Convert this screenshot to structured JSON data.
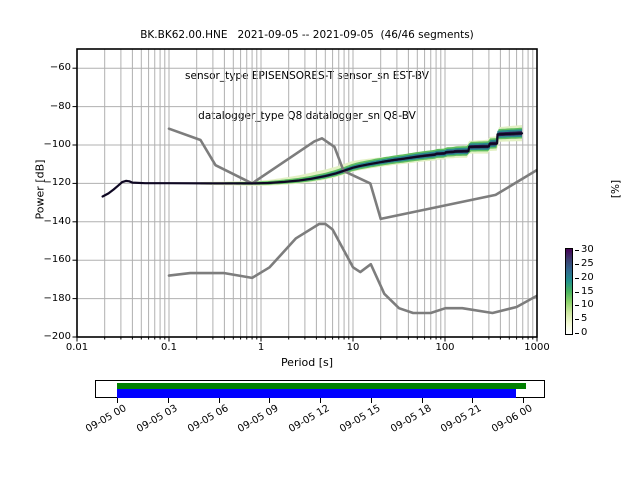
{
  "title": {
    "line1": "BK.BK62.00.HNE   2021-09-05 -- 2021-09-05  (46/46 segments)",
    "line2": "sensor_type EPISENSORES-T sensor_sn EST-BV",
    "line3": "datalogger_type Q8 datalogger_sn Q8-BV"
  },
  "chart_data": {
    "type": "line",
    "subtype": "ppsd-probabilistic-power-spectral-density",
    "xlabel": "Period [s]",
    "ylabel": "Power [dB]",
    "xscale": "log",
    "xlim": [
      0.01,
      1000
    ],
    "ylim": [
      -200,
      -50
    ],
    "grid": true,
    "x_ticks": {
      "values": [
        0.01,
        0.1,
        1,
        10,
        100,
        1000
      ],
      "labels": [
        "0.01",
        "0.1",
        "1",
        "10",
        "100",
        "1000"
      ]
    },
    "y_ticks": {
      "values": [
        -60,
        -80,
        -100,
        -120,
        -140,
        -160,
        -180,
        -200
      ],
      "labels": [
        "−60",
        "−80",
        "−100",
        "−120",
        "−140",
        "−160",
        "−180",
        "−200"
      ]
    },
    "colors": {
      "grid": "#b0b0b0",
      "frame": "#000000",
      "noise_model": "#7d7d7d",
      "psd_mode_line": "#0f0823",
      "band_pale": "#e2f0c3",
      "band_green": "#5fbe5f",
      "band_teal": "#28898c",
      "band_dark": "#341b59",
      "coverage_green": "#007f00",
      "coverage_blue": "#0000ff"
    },
    "series": [
      {
        "name": "NHNM-high-noise-model",
        "color": "#7d7d7d",
        "points": [
          [
            0.1,
            -91.5
          ],
          [
            0.22,
            -97.4
          ],
          [
            0.32,
            -110.5
          ],
          [
            0.8,
            -120.0
          ],
          [
            3.8,
            -98.1
          ],
          [
            4.6,
            -96.5
          ],
          [
            6.3,
            -101.0
          ],
          [
            7.9,
            -113.5
          ],
          [
            15.4,
            -120.0
          ],
          [
            20,
            -138.5
          ],
          [
            354.8,
            -126.0
          ],
          [
            1000,
            -113.0
          ]
        ]
      },
      {
        "name": "NLNM-low-noise-model",
        "color": "#7d7d7d",
        "points": [
          [
            0.1,
            -168.0
          ],
          [
            0.17,
            -166.7
          ],
          [
            0.4,
            -166.7
          ],
          [
            0.8,
            -169.2
          ],
          [
            1.24,
            -163.7
          ],
          [
            2.4,
            -148.6
          ],
          [
            4.3,
            -141.1
          ],
          [
            5,
            -141.1
          ],
          [
            6,
            -144.0
          ],
          [
            10,
            -163.7
          ],
          [
            12,
            -166.2
          ],
          [
            15.6,
            -162.1
          ],
          [
            21.9,
            -177.5
          ],
          [
            31.6,
            -185.0
          ],
          [
            45,
            -187.5
          ],
          [
            70,
            -187.5
          ],
          [
            101,
            -185.0
          ],
          [
            154,
            -185.0
          ],
          [
            328,
            -187.5
          ],
          [
            600,
            -184.4
          ],
          [
            1000,
            -178.5
          ]
        ]
      },
      {
        "name": "psd-mode",
        "color": "#0f0823",
        "points": [
          [
            0.019,
            -126.8
          ],
          [
            0.022,
            -125.2
          ],
          [
            0.025,
            -123.2
          ],
          [
            0.028,
            -121.2
          ],
          [
            0.031,
            -119.3
          ],
          [
            0.034,
            -118.7
          ],
          [
            0.037,
            -118.9
          ],
          [
            0.04,
            -119.6
          ],
          [
            0.055,
            -119.9
          ],
          [
            0.1,
            -119.9
          ],
          [
            0.3,
            -120.0
          ],
          [
            0.8,
            -120.0
          ],
          [
            1.2,
            -119.8
          ],
          [
            1.8,
            -119.2
          ],
          [
            2.6,
            -118.5
          ],
          [
            3.5,
            -117.6
          ],
          [
            5,
            -116.2
          ],
          [
            6.5,
            -114.8
          ],
          [
            8,
            -113.4
          ],
          [
            10,
            -111.8
          ],
          [
            12,
            -110.9
          ],
          [
            15,
            -110.0
          ],
          [
            18,
            -109.3
          ],
          [
            22,
            -108.6
          ],
          [
            28,
            -107.8
          ],
          [
            35,
            -107.2
          ],
          [
            45,
            -106.4
          ],
          [
            60,
            -105.6
          ],
          [
            78,
            -105.0
          ],
          [
            80,
            -104.6
          ],
          [
            100,
            -104.4
          ],
          [
            102,
            -103.8
          ],
          [
            125,
            -103.6
          ],
          [
            127,
            -103.4
          ],
          [
            180,
            -103.2
          ],
          [
            183,
            -101.0
          ],
          [
            300,
            -100.8
          ],
          [
            305,
            -99.4
          ],
          [
            368,
            -99.2
          ],
          [
            372,
            -94.5
          ],
          [
            500,
            -94.2
          ],
          [
            687,
            -93.9
          ]
        ]
      }
    ],
    "histogram_bands": [
      {
        "name": "pale",
        "color": "#e2f0c3",
        "from": 0.22,
        "to": 687,
        "up": [
          [
            0.22,
            0.7
          ],
          [
            1,
            1.3
          ],
          [
            4,
            3.4
          ],
          [
            9,
            3.6
          ],
          [
            25,
            2.2
          ],
          [
            100,
            2.6
          ],
          [
            687,
            4.3
          ]
        ],
        "dn": [
          [
            0.22,
            0.7
          ],
          [
            1,
            1.3
          ],
          [
            10,
            2.1
          ],
          [
            687,
            4.1
          ]
        ]
      },
      {
        "name": "green",
        "color": "#5fbe5f",
        "from": 0.4,
        "to": 687,
        "up": [
          [
            0.4,
            0.5
          ],
          [
            4,
            1.6
          ],
          [
            10,
            2.1
          ],
          [
            687,
            2.9
          ]
        ],
        "dn": [
          [
            0.4,
            0.5
          ],
          [
            4,
            1.3
          ],
          [
            10,
            1.7
          ],
          [
            687,
            2.7
          ]
        ]
      },
      {
        "name": "teal",
        "color": "#28898c",
        "from": 1.5,
        "to": 687,
        "up": [
          [
            1.5,
            0.4
          ],
          [
            10,
            1.2
          ],
          [
            687,
            2.1
          ]
        ],
        "dn": [
          [
            1.5,
            0.4
          ],
          [
            10,
            1.0
          ],
          [
            687,
            1.9
          ]
        ]
      },
      {
        "name": "dark",
        "color": "#341b59",
        "from": 4,
        "to": 687,
        "up": [
          [
            4,
            0.3
          ],
          [
            687,
            1.1
          ]
        ],
        "dn": [
          [
            4,
            0.3
          ],
          [
            687,
            1.0
          ]
        ]
      }
    ],
    "colorbar": {
      "label": "[%]",
      "tick_values": [
        30,
        25,
        20,
        15,
        10,
        5,
        0
      ],
      "tick_labels": [
        "30",
        "25",
        "20",
        "15",
        "10",
        "5",
        "0"
      ],
      "gradient_bottom_to_top": [
        "#ffffff",
        "#f2f9d4",
        "#cfe8a2",
        "#8ed36b",
        "#49b35f",
        "#21908d",
        "#31688e",
        "#3b3d6f",
        "#440154"
      ]
    },
    "coverage": {
      "tick_labels": [
        "09-05 00",
        "09-05 03",
        "09-05 06",
        "09-05 09",
        "09-05 12",
        "09-05 15",
        "09-05 18",
        "09-05 21",
        "09-06 00"
      ],
      "green_bar": {
        "meaning": "data coverage",
        "color": "#007f00"
      },
      "blue_bar": {
        "meaning": "processed segments",
        "color": "#0000ff"
      }
    }
  }
}
